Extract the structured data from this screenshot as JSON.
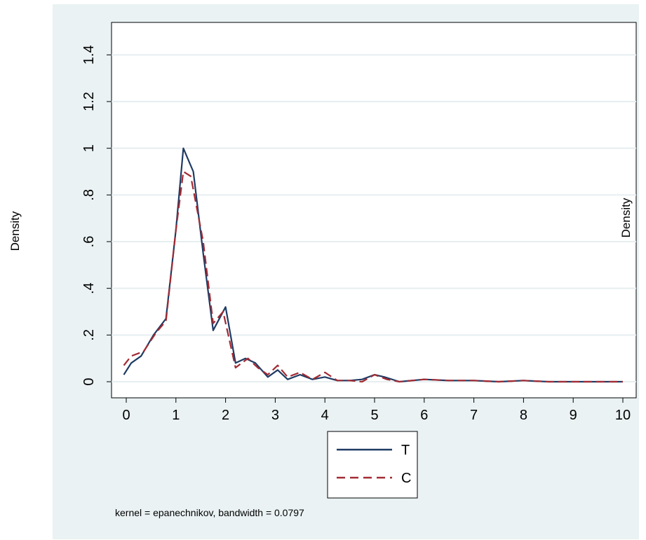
{
  "chart_data": {
    "type": "line",
    "xlabel": "",
    "ylabel": "Density",
    "ylabel_right": "Density",
    "xlim": [
      0,
      10
    ],
    "ylim": [
      0,
      1.5
    ],
    "x_ticks": [
      "0",
      "1",
      "2",
      "3",
      "4",
      "5",
      "6",
      "7",
      "8",
      "9",
      "10"
    ],
    "y_ticks": [
      "0",
      ".2",
      ".4",
      ".6",
      ".8",
      "1",
      "1.2",
      "1.4"
    ],
    "grid": true,
    "legend_position": "bottom",
    "note": "kernel = epanechnikov, bandwidth = 0.0797",
    "series": [
      {
        "name": "T",
        "style": "solid",
        "color": "#1f3b63",
        "points": [
          [
            -0.05,
            0.03
          ],
          [
            0.1,
            0.08
          ],
          [
            0.3,
            0.11
          ],
          [
            0.55,
            0.2
          ],
          [
            0.8,
            0.27
          ],
          [
            1.0,
            0.65
          ],
          [
            1.15,
            1.0
          ],
          [
            1.35,
            0.9
          ],
          [
            1.55,
            0.55
          ],
          [
            1.75,
            0.22
          ],
          [
            2.0,
            0.32
          ],
          [
            2.2,
            0.08
          ],
          [
            2.4,
            0.1
          ],
          [
            2.6,
            0.08
          ],
          [
            2.85,
            0.02
          ],
          [
            3.05,
            0.05
          ],
          [
            3.25,
            0.01
          ],
          [
            3.5,
            0.03
          ],
          [
            3.75,
            0.01
          ],
          [
            4.0,
            0.02
          ],
          [
            4.25,
            0.005
          ],
          [
            4.5,
            0.005
          ],
          [
            4.75,
            0.01
          ],
          [
            5.0,
            0.03
          ],
          [
            5.2,
            0.02
          ],
          [
            5.5,
            0.0
          ],
          [
            6.0,
            0.01
          ],
          [
            6.5,
            0.005
          ],
          [
            7.0,
            0.005
          ],
          [
            7.5,
            0.0
          ],
          [
            8.0,
            0.005
          ],
          [
            8.5,
            0.0
          ],
          [
            9.0,
            0.0
          ],
          [
            9.5,
            0.0
          ],
          [
            10.0,
            0.0
          ]
        ]
      },
      {
        "name": "C",
        "style": "dashed",
        "color": "#a32a33",
        "points": [
          [
            -0.05,
            0.07
          ],
          [
            0.1,
            0.11
          ],
          [
            0.35,
            0.13
          ],
          [
            0.6,
            0.21
          ],
          [
            0.8,
            0.26
          ],
          [
            1.0,
            0.65
          ],
          [
            1.15,
            0.9
          ],
          [
            1.3,
            0.88
          ],
          [
            1.55,
            0.6
          ],
          [
            1.75,
            0.25
          ],
          [
            1.95,
            0.3
          ],
          [
            2.2,
            0.06
          ],
          [
            2.45,
            0.1
          ],
          [
            2.65,
            0.06
          ],
          [
            2.85,
            0.03
          ],
          [
            3.05,
            0.07
          ],
          [
            3.25,
            0.02
          ],
          [
            3.5,
            0.04
          ],
          [
            3.75,
            0.01
          ],
          [
            4.0,
            0.04
          ],
          [
            4.25,
            0.005
          ],
          [
            4.5,
            0.005
          ],
          [
            4.75,
            0.0
          ],
          [
            5.0,
            0.03
          ],
          [
            5.25,
            0.01
          ],
          [
            5.5,
            0.0
          ],
          [
            6.0,
            0.01
          ],
          [
            6.5,
            0.005
          ],
          [
            7.0,
            0.005
          ],
          [
            7.5,
            0.0
          ],
          [
            8.0,
            0.005
          ],
          [
            8.5,
            0.0
          ],
          [
            9.0,
            0.0
          ],
          [
            9.5,
            0.0
          ],
          [
            10.0,
            0.0
          ]
        ]
      }
    ]
  }
}
